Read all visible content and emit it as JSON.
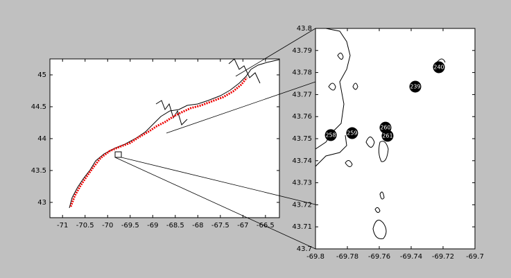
{
  "chart_data": [
    {
      "type": "map",
      "xlim": [
        -71.28,
        -66.19
      ],
      "ylim": [
        42.76,
        45.25
      ],
      "xticks": [
        -71,
        -70.5,
        -70,
        -69.5,
        -69,
        -68.5,
        -68,
        -67.5,
        -67,
        -66.5
      ],
      "yticks": [
        43,
        43.5,
        44,
        44.5,
        45
      ]
    },
    {
      "type": "scatter",
      "xlim": [
        -69.8,
        -69.7
      ],
      "ylim": [
        43.7,
        43.8
      ],
      "xticks": [
        -69.8,
        -69.78,
        -69.76,
        -69.74,
        -69.72,
        -69.7
      ],
      "yticks": [
        43.7,
        43.71,
        43.72,
        43.73,
        43.74,
        43.75,
        43.76,
        43.77,
        43.78,
        43.79,
        43.8
      ],
      "x": [
        -69.7226,
        -69.7374,
        -69.7904,
        -69.777,
        -69.7561,
        -69.7548
      ],
      "y": [
        43.7824,
        43.7736,
        43.7516,
        43.7525,
        43.755,
        43.7513
      ],
      "labels": [
        "240",
        "239",
        "258",
        "259",
        "260",
        "261"
      ],
      "color": "#000000"
    }
  ]
}
